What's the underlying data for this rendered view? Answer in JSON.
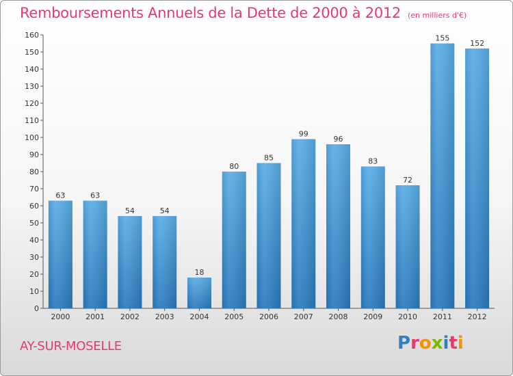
{
  "chart_data": {
    "type": "bar",
    "title": "Remboursements Annuels de la Dette de 2000 à 2012",
    "subtitle": "(en milliers d'€)",
    "categories": [
      "2000",
      "2001",
      "2002",
      "2003",
      "2004",
      "2005",
      "2006",
      "2007",
      "2008",
      "2009",
      "2010",
      "2011",
      "2012"
    ],
    "values": [
      63,
      63,
      54,
      54,
      18,
      80,
      85,
      99,
      96,
      83,
      72,
      155,
      152
    ],
    "ylim": [
      0,
      160
    ],
    "yticks": [
      0,
      10,
      20,
      30,
      40,
      50,
      60,
      70,
      80,
      90,
      100,
      110,
      120,
      130,
      140,
      150,
      160
    ],
    "grid": false,
    "bar_color": "#3d8fd6"
  },
  "footer": {
    "city": "AY-SUR-MOSELLE",
    "logo_letters": [
      {
        "ch": "P",
        "color": "#2f7fc1"
      },
      {
        "ch": "r",
        "color": "#e8386e"
      },
      {
        "ch": "o",
        "color": "#f29400"
      },
      {
        "ch": "x",
        "color": "#7ab800"
      },
      {
        "ch": "i",
        "color": "#2f7fc1"
      },
      {
        "ch": "t",
        "color": "#e8386e"
      },
      {
        "ch": "i",
        "color": "#f29400"
      }
    ]
  }
}
